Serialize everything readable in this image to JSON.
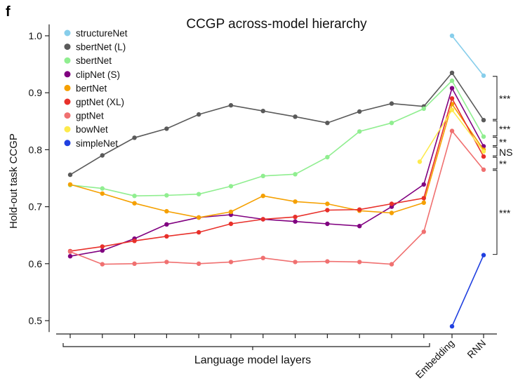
{
  "panel_label": "f",
  "chart_data": {
    "type": "line",
    "title": "CCGP across-model hierarchy",
    "ylabel": "Hold-out task CCGP",
    "xlabel": "Language model layers",
    "ylim": [
      0.48,
      1.02
    ],
    "yticks": [
      "0.5",
      "0.6",
      "0.7",
      "0.8",
      "0.9",
      "1.0"
    ],
    "yticks_values": [
      0.5,
      0.6,
      0.7,
      0.8,
      0.9,
      1.0
    ],
    "layer_count": 12,
    "extra_categories": [
      "Embedding",
      "RNN"
    ],
    "legend_position": "top-left",
    "series": [
      {
        "name": "structureNet",
        "color": "#87ceeb",
        "layers": [],
        "embedding": 1.0,
        "rnn": 0.93
      },
      {
        "name": "sbertNet (L)",
        "color": "#5a5a5a",
        "layers": [
          0.756,
          0.79,
          0.821,
          0.837,
          0.862,
          0.878,
          0.868,
          0.858,
          0.847,
          0.867,
          0.881,
          0.876
        ],
        "embedding": 0.935,
        "rnn": 0.852
      },
      {
        "name": "sbertNet",
        "color": "#90ee90",
        "layers": [
          0.738,
          0.732,
          0.719,
          0.72,
          0.722,
          0.736,
          0.754,
          0.757,
          0.787,
          0.832,
          0.847,
          0.872
        ],
        "embedding": 0.921,
        "rnn": 0.823
      },
      {
        "name": "clipNet (S)",
        "color": "#800080",
        "layers": [
          0.613,
          0.623,
          0.644,
          0.669,
          0.681,
          0.686,
          0.678,
          0.674,
          0.67,
          0.666,
          0.7,
          0.739
        ],
        "embedding": 0.908,
        "rnn": 0.806
      },
      {
        "name": "bertNet",
        "color": "#f5a000",
        "layers": [
          0.739,
          0.723,
          0.706,
          0.692,
          0.681,
          0.691,
          0.719,
          0.709,
          0.705,
          0.693,
          0.689,
          0.707
        ],
        "embedding": 0.88,
        "rnn": 0.8
      },
      {
        "name": "gptNet (XL)",
        "color": "#e8302a",
        "layers": [
          0.622,
          0.63,
          0.64,
          0.648,
          0.655,
          0.67,
          0.678,
          0.682,
          0.694,
          0.695,
          0.705,
          0.715
        ],
        "embedding": 0.89,
        "rnn": 0.788
      },
      {
        "name": "gptNet",
        "color": "#f07070",
        "layers": [
          0.621,
          0.599,
          0.6,
          0.603,
          0.6,
          0.603,
          0.61,
          0.603,
          0.604,
          0.603,
          0.599,
          0.656
        ],
        "embedding": 0.833,
        "rnn": 0.765
      },
      {
        "name": "bowNet",
        "color": "#fdea4c",
        "layers": [],
        "embedding": 0.87,
        "rnn": 0.797,
        "pre_embedding": 0.779
      },
      {
        "name": "simpleNet",
        "color": "#2040e0",
        "layers": [],
        "embedding": 0.49,
        "rnn": 0.615
      }
    ],
    "significance": [
      {
        "label": "***",
        "from": 0.93,
        "to": 0.852
      },
      {
        "label": "***",
        "from": 0.852,
        "to": 0.823
      },
      {
        "label": "**",
        "from": 0.823,
        "to": 0.806
      },
      {
        "label": "NS",
        "from": 0.806,
        "to": 0.788
      },
      {
        "label": "**",
        "from": 0.788,
        "to": 0.765
      },
      {
        "label": "***",
        "from": 0.765,
        "to": 0.615
      }
    ]
  }
}
